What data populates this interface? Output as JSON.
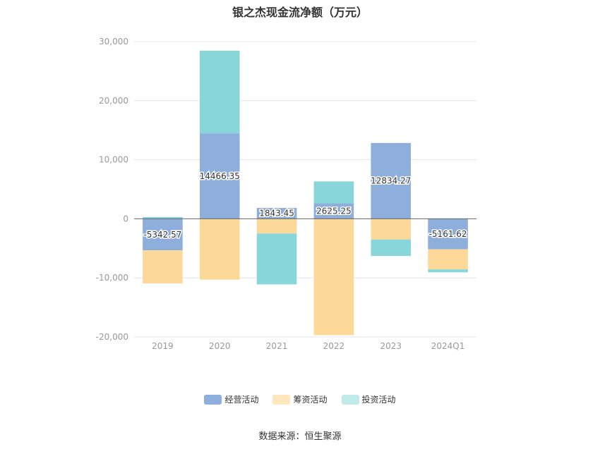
{
  "chart_data": {
    "type": "bar",
    "stacked": true,
    "title": "银之杰现金流净额（万元）",
    "xlabel": "",
    "ylabel": "",
    "categories": [
      "2019",
      "2020",
      "2021",
      "2022",
      "2023",
      "2024Q1"
    ],
    "ylim": [
      -20000,
      30000
    ],
    "yticks": [
      30000,
      20000,
      10000,
      0,
      -10000,
      -20000
    ],
    "ytick_labels": [
      "30,000",
      "20,000",
      "10,000",
      "0",
      "-10,000",
      "-20,000"
    ],
    "grid": true,
    "legend_position": "bottom",
    "series": [
      {
        "name": "经营活动",
        "color": "#8eaedb",
        "values": [
          -5342.57,
          14466.35,
          1843.45,
          2625.25,
          12834.27,
          -5161.62
        ],
        "labels": [
          "-5342.57",
          "14466.35",
          "1843.45",
          "2625.25",
          "12834.27",
          "-5161.62"
        ]
      },
      {
        "name": "筹资活动",
        "color": "#fcd899",
        "values": [
          -5600,
          -10300,
          -2500,
          -19700,
          -3500,
          -3400
        ]
      },
      {
        "name": "投资活动",
        "color": "#88d6d9",
        "values": [
          300,
          14000,
          -8600,
          3700,
          -2800,
          -500
        ]
      }
    ]
  },
  "source_text": "数据来源：恒生聚源",
  "legend_swatch_colors": {
    "经营活动": "#8eaedb",
    "筹资活动": "#ffe6bd",
    "投资活动": "#c1ebeb"
  }
}
